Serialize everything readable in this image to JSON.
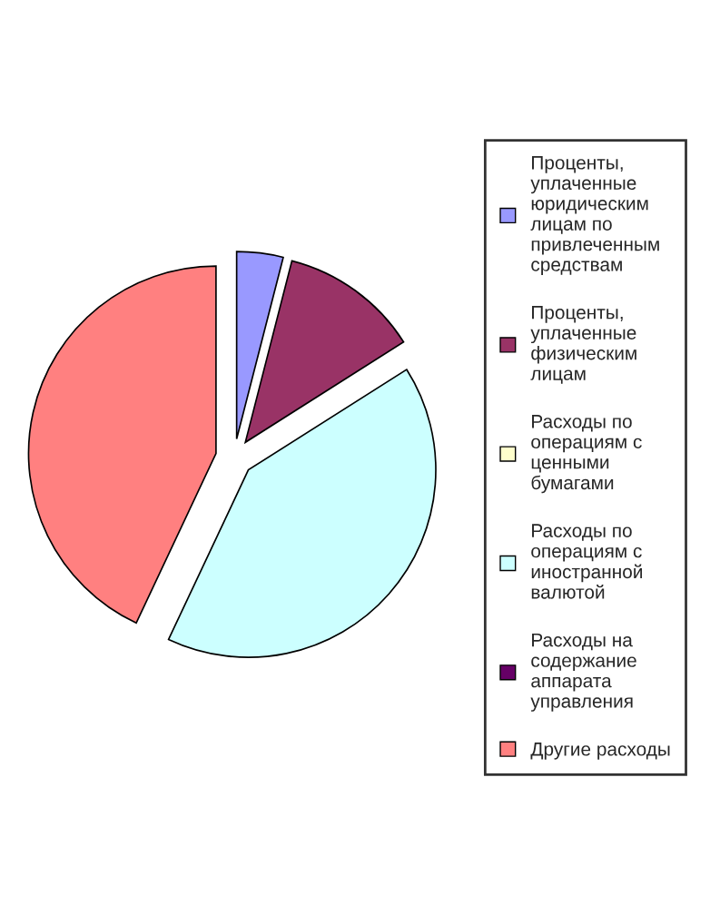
{
  "chart_data": {
    "type": "pie",
    "categories": [
      "Проценты,\nуплаченные\nюридическим\nлицам по\nпривлеченным\nсредствам",
      "Проценты,\nуплаченные\nфизическим\nлицам",
      "Расходы по\nоперациям с\nценными\nбумагами",
      "Расходы по\nоперациям с\nиностранной\nвалютой",
      "Расходы на\nсодержание\nаппарата\nуправления",
      "Другие расходы"
    ],
    "values": [
      4,
      12,
      0,
      41,
      0,
      43
    ],
    "colors": [
      "#9999ff",
      "#993366",
      "#ffffcc",
      "#ccffff",
      "#660066",
      "#ff8080"
    ],
    "legend": "right"
  }
}
